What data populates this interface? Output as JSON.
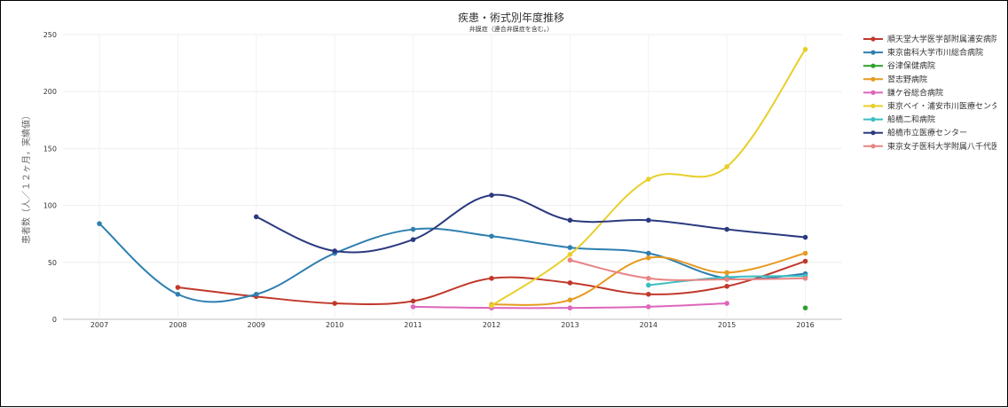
{
  "chart_data": {
    "type": "line",
    "title": "疾患・術式別年度推移",
    "subtitle": "弁膜症（連合弁膜症を含む。）",
    "xlabel": "",
    "ylabel": "患者数（人／１２ヶ月，実績値）",
    "x": [
      2007,
      2008,
      2009,
      2010,
      2011,
      2012,
      2013,
      2014,
      2015,
      2016
    ],
    "ylim": [
      0,
      250
    ],
    "yticks": [
      0,
      50,
      100,
      150,
      200,
      250
    ],
    "grid": true,
    "legend_position": "right",
    "series": [
      {
        "name": "順天堂大学医学部附属浦安病院",
        "color": "#c0392b",
        "values": [
          null,
          28,
          20,
          14,
          16,
          36,
          32,
          22,
          29,
          51
        ]
      },
      {
        "name": "東京歯科大学市川総合病院",
        "color": "#2e7fb0",
        "values": [
          84,
          22,
          22,
          58,
          79,
          73,
          63,
          58,
          36,
          40
        ]
      },
      {
        "name": "谷津保健病院",
        "color": "#2ca02c",
        "values": [
          null,
          null,
          null,
          null,
          null,
          null,
          null,
          null,
          null,
          10
        ]
      },
      {
        "name": "習志野病院",
        "color": "#e69a20",
        "values": [
          null,
          null,
          null,
          null,
          null,
          13,
          17,
          54,
          41,
          58
        ]
      },
      {
        "name": "鎌ケ谷総合病院",
        "color": "#dd66bb",
        "values": [
          null,
          null,
          null,
          null,
          11,
          10,
          10,
          11,
          14,
          null
        ]
      },
      {
        "name": "東京ベイ・浦安市川医療センター",
        "color": "#e8cf2a",
        "values": [
          null,
          null,
          null,
          null,
          null,
          12,
          57,
          123,
          134,
          237
        ]
      },
      {
        "name": "船橋二和病院",
        "color": "#3bbfc0",
        "values": [
          null,
          null,
          null,
          null,
          null,
          null,
          null,
          30,
          37,
          38
        ]
      },
      {
        "name": "船橋市立医療センター",
        "color": "#2b3a7f",
        "values": [
          null,
          null,
          90,
          60,
          70,
          109,
          87,
          87,
          79,
          72
        ]
      },
      {
        "name": "東京女子医科大学附属八千代医療センター",
        "color": "#e88484",
        "values": [
          null,
          null,
          null,
          null,
          null,
          null,
          52,
          36,
          35,
          36
        ]
      }
    ]
  }
}
